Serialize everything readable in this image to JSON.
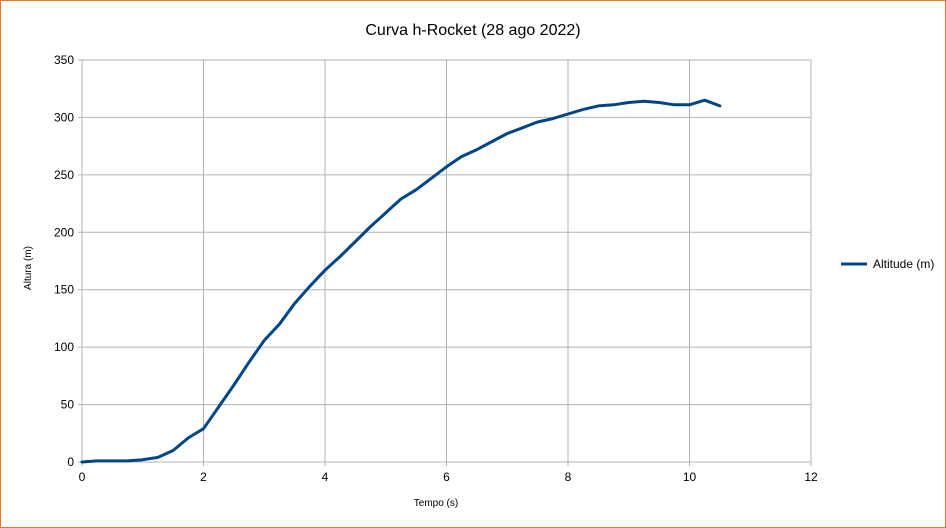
{
  "chart_data": {
    "type": "line",
    "title": "Curva h-Rocket (28 ago 2022)",
    "xlabel": "Tempo (s)",
    "ylabel": "Altura (m)",
    "xlim": [
      0,
      12
    ],
    "ylim": [
      0,
      350
    ],
    "x_ticks": [
      "0",
      "2",
      "4",
      "6",
      "8",
      "10",
      "12"
    ],
    "y_ticks": [
      "0",
      "50",
      "100",
      "150",
      "200",
      "250",
      "300",
      "350"
    ],
    "grid": true,
    "legend_position": "right",
    "series": [
      {
        "name": "Altitude (m)",
        "color": "#004586",
        "x": [
          0,
          0.25,
          0.5,
          0.75,
          1.0,
          1.25,
          1.5,
          1.75,
          2.0,
          2.25,
          2.5,
          2.75,
          3.0,
          3.25,
          3.5,
          3.75,
          4.0,
          4.25,
          4.5,
          4.75,
          5.0,
          5.25,
          5.5,
          5.75,
          6.0,
          6.25,
          6.5,
          6.75,
          7.0,
          7.25,
          7.5,
          7.75,
          8.0,
          8.25,
          8.5,
          8.75,
          9.0,
          9.25,
          9.5,
          9.75,
          10.0,
          10.25,
          10.5
        ],
        "y": [
          0,
          1,
          1,
          1,
          2,
          4,
          10,
          21,
          29,
          48,
          67,
          87,
          106,
          120,
          138,
          153,
          167,
          179,
          192,
          205,
          217,
          229,
          237,
          247,
          257,
          266,
          272,
          279,
          286,
          291,
          296,
          299,
          303,
          307,
          310,
          311,
          313,
          314,
          313,
          311,
          311,
          315,
          310
        ]
      }
    ]
  }
}
